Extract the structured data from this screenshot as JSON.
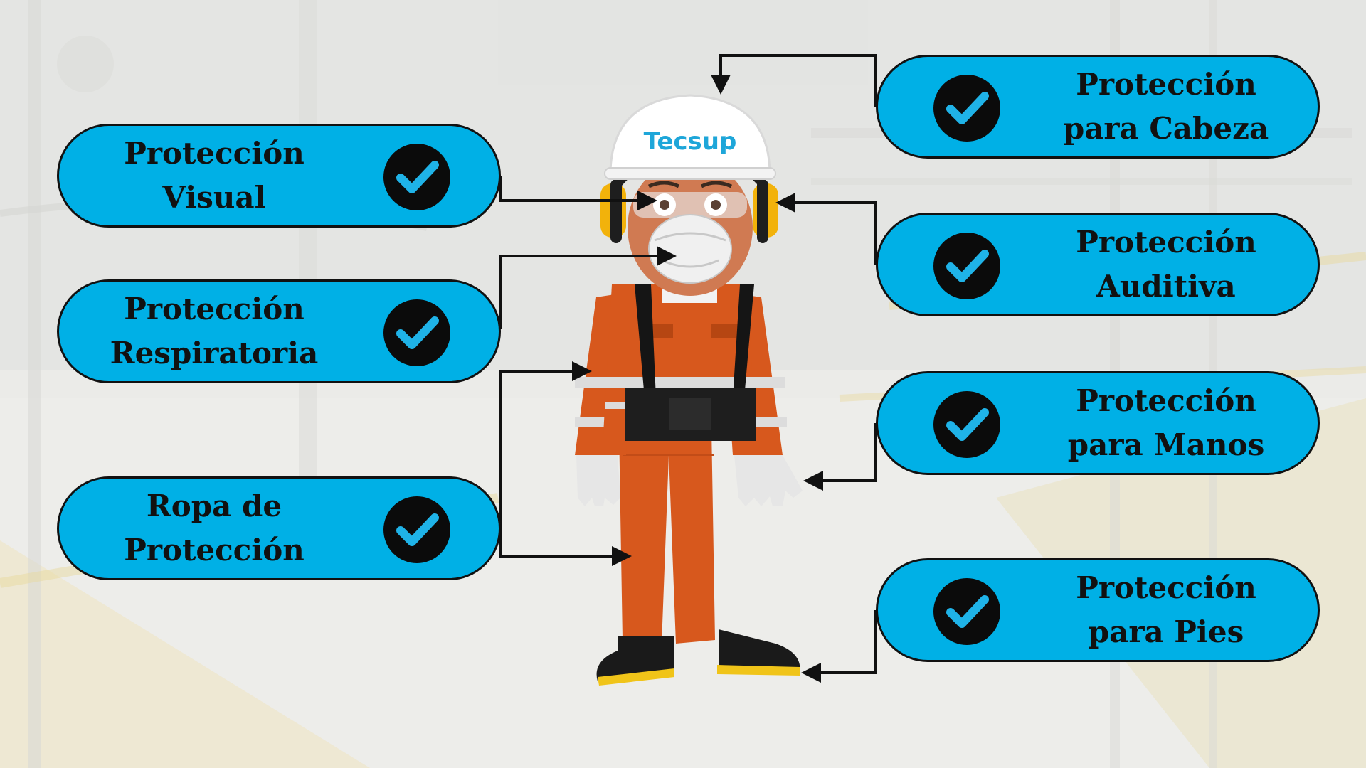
{
  "labels": {
    "visual": [
      "Protección",
      "Visual"
    ],
    "respiratoria": [
      "Protección",
      "Respiratoria"
    ],
    "ropa": [
      "Ropa de",
      "Protección"
    ],
    "cabeza": [
      "Protección",
      "para Cabeza"
    ],
    "auditiva": [
      "Protección",
      "Auditiva"
    ],
    "manos": [
      "Protección",
      "para Manos"
    ],
    "pies": [
      "Protección",
      "para Pies"
    ]
  },
  "helmet_brand": "Tecsup",
  "icons": {
    "check": "check-circle-icon"
  },
  "colors": {
    "pill": "#00b0e6",
    "suit": "#d7581d",
    "helmet": "#ffffff",
    "brand": "#1ea6d9",
    "earmuff": "#f2b20b"
  }
}
